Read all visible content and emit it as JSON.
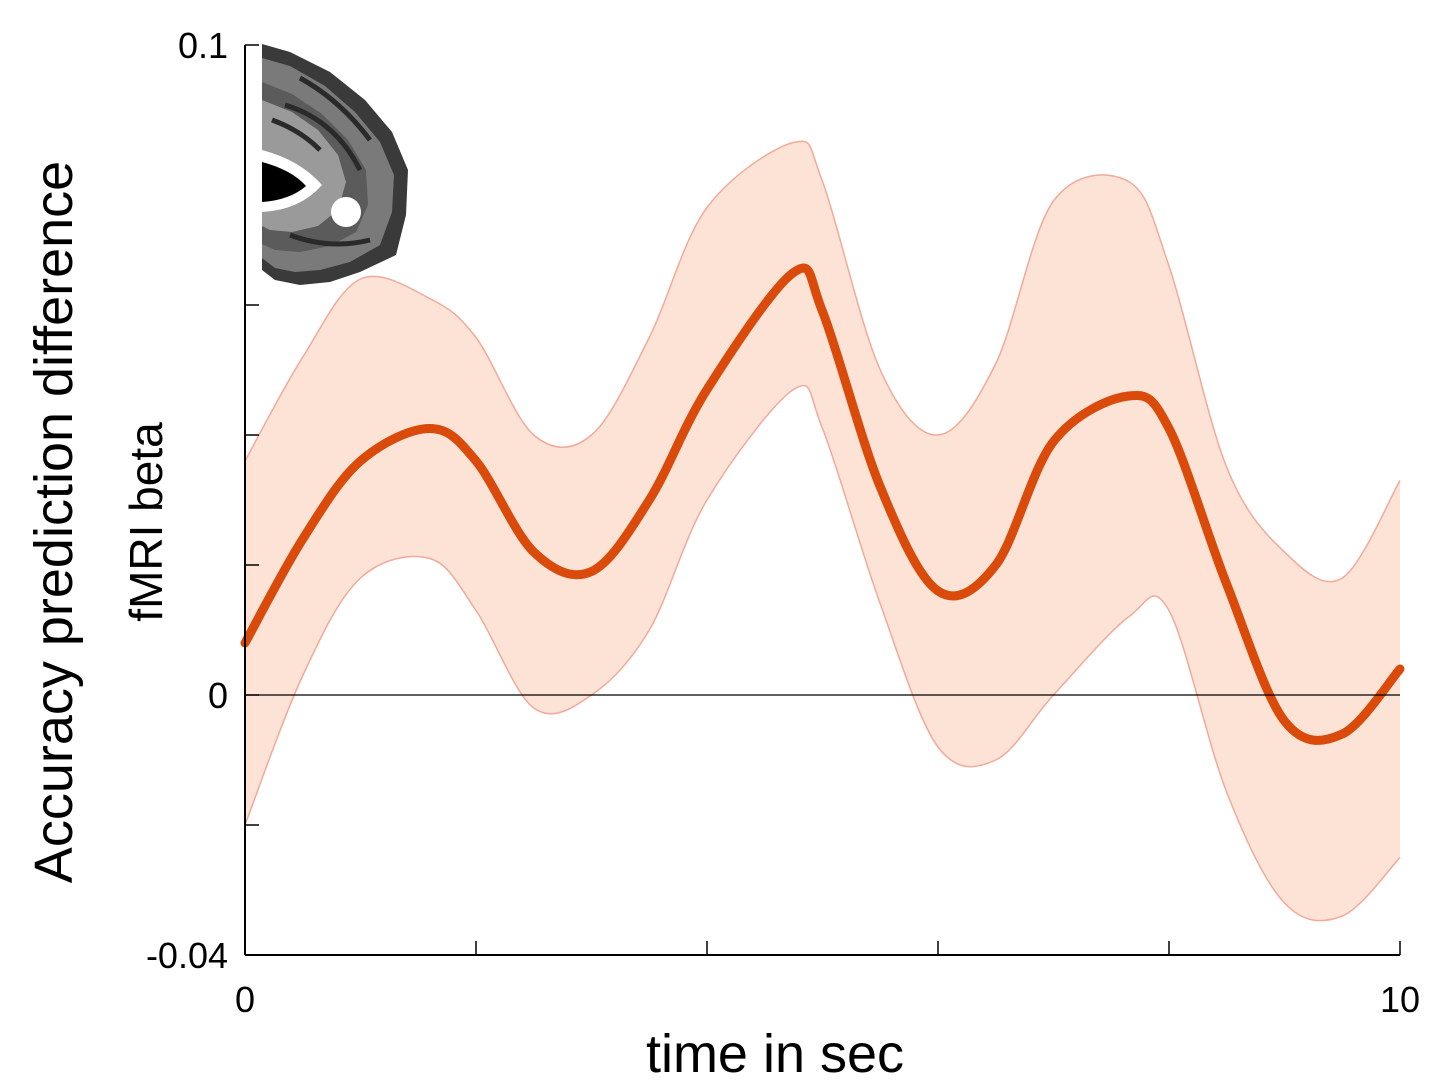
{
  "chart_data": {
    "type": "line",
    "xlabel": "time in sec",
    "ylabel": "Accuracy prediction difference",
    "ylabel2": "fMRI beta",
    "xlim": [
      0,
      10
    ],
    "ylim": [
      -0.04,
      0.1
    ],
    "x_tick_labels": [
      {
        "value": 0,
        "label": "0"
      },
      {
        "value": 10,
        "label": "10"
      }
    ],
    "y_tick_labels": [
      {
        "value": 0.1,
        "label": "0.1"
      },
      {
        "value": 0,
        "label": "0"
      },
      {
        "value": -0.04,
        "label": "-0.04"
      }
    ],
    "x_minor_ticks": [
      2,
      4,
      6,
      8
    ],
    "y_minor_ticks": [
      0.06,
      0.04,
      0.02,
      -0.02
    ],
    "zero_line": true,
    "grid": false,
    "inset": "brain-slice-image",
    "colors": {
      "line": "#d94a0b",
      "band_fill": "#fce3d6",
      "band_edge": "#f2a99a"
    },
    "series": [
      {
        "x": [
          0,
          0.5,
          1,
          1.6,
          2,
          2.5,
          3,
          3.5,
          4,
          4.75,
          5,
          5.5,
          6,
          6.5,
          7,
          7.65,
          8,
          8.5,
          9,
          9.5,
          10
        ],
        "y": [
          0.008,
          0.024,
          0.036,
          0.041,
          0.036,
          0.022,
          0.019,
          0.03,
          0.047,
          0.065,
          0.059,
          0.032,
          0.016,
          0.02,
          0.039,
          0.046,
          0.041,
          0.017,
          -0.004,
          -0.006,
          0.004
        ],
        "upper": [
          0.036,
          0.052,
          0.064,
          0.061,
          0.055,
          0.04,
          0.04,
          0.055,
          0.075,
          0.085,
          0.079,
          0.05,
          0.04,
          0.051,
          0.076,
          0.079,
          0.066,
          0.035,
          0.022,
          0.018,
          0.033
        ],
        "lower": [
          -0.02,
          0.003,
          0.018,
          0.021,
          0.013,
          -0.002,
          0.0,
          0.01,
          0.03,
          0.047,
          0.041,
          0.014,
          -0.008,
          -0.01,
          0.0,
          0.012,
          0.013,
          -0.015,
          -0.032,
          -0.034,
          -0.025
        ]
      }
    ]
  }
}
